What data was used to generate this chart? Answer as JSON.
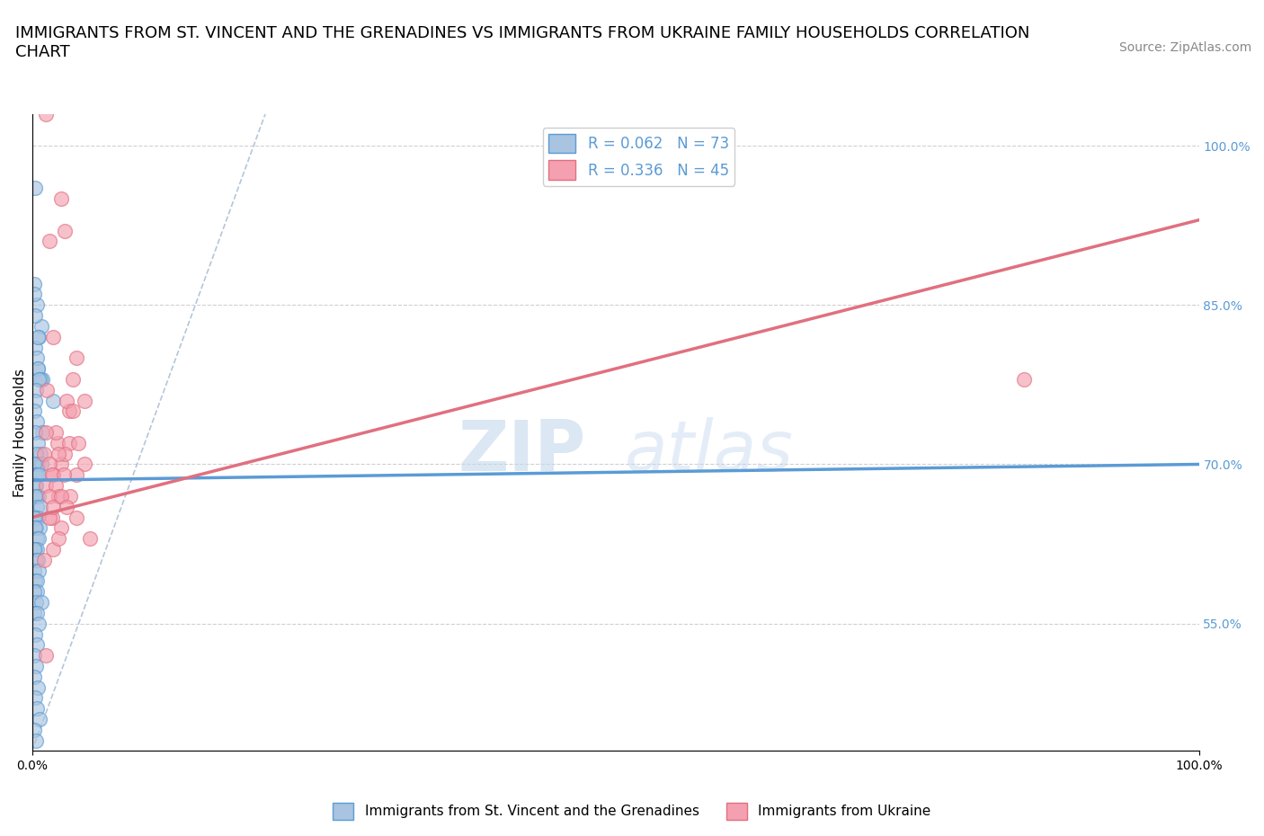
{
  "title": "IMMIGRANTS FROM ST. VINCENT AND THE GRENADINES VS IMMIGRANTS FROM UKRAINE FAMILY HOUSEHOLDS CORRELATION\nCHART",
  "source": "Source: ZipAtlas.com",
  "ylabel": "Family Households",
  "xlim": [
    0,
    100
  ],
  "ylim": [
    43,
    103
  ],
  "yticks": [
    55.0,
    70.0,
    85.0,
    100.0
  ],
  "xtick_labels": [
    "0.0%",
    "100.0%"
  ],
  "ytick_labels": [
    "55.0%",
    "70.0%",
    "85.0%",
    "100.0%"
  ],
  "legend_r1": "R = 0.062   N = 73",
  "legend_r2": "R = 0.336   N = 45",
  "color_blue": "#a8c4e0",
  "color_pink": "#f4a0b0",
  "color_blue_line": "#5b9bd5",
  "color_pink_line": "#e07080",
  "title_fontsize": 13,
  "axis_fontsize": 11,
  "tick_fontsize": 10,
  "source_fontsize": 10,
  "blue_line_x": [
    0,
    100
  ],
  "blue_line_y": [
    68.5,
    70.0
  ],
  "pink_line_x": [
    0,
    100
  ],
  "pink_line_y": [
    65.0,
    93.0
  ],
  "diag_line_x": [
    0,
    20
  ],
  "diag_line_y": [
    43,
    103
  ],
  "series1_x": [
    0.3,
    0.8,
    0.5,
    0.9,
    1.8,
    0.2,
    0.4,
    0.6,
    0.3,
    0.4,
    0.5,
    0.7,
    0.15,
    0.3,
    0.5,
    0.6,
    0.35,
    0.25,
    0.2,
    0.4,
    0.9,
    0.3,
    0.5,
    0.7,
    0.35,
    0.5,
    0.8,
    0.2,
    0.25,
    0.4,
    0.55,
    0.3,
    0.35,
    0.45,
    0.6,
    0.25,
    0.4,
    0.75,
    0.3,
    0.5,
    0.18,
    0.35,
    0.65,
    0.25,
    0.45,
    0.55,
    0.3,
    0.4,
    0.18,
    0.35,
    0.5,
    0.22,
    0.6,
    0.28,
    0.4,
    0.45,
    0.18,
    0.35,
    0.8,
    0.22,
    0.4,
    0.55,
    0.3,
    0.45,
    0.18,
    0.35,
    0.22,
    0.5,
    0.28,
    0.4,
    0.65,
    0.22,
    0.35
  ],
  "series1_y": [
    96,
    83,
    79,
    78,
    76,
    87,
    85,
    82,
    81,
    80,
    79,
    78,
    86,
    84,
    82,
    78,
    77,
    76,
    75,
    74,
    73,
    73,
    72,
    71,
    71,
    70,
    70,
    70,
    69,
    69,
    69,
    68,
    68,
    67,
    67,
    67,
    66,
    66,
    65,
    65,
    65,
    64,
    64,
    64,
    63,
    63,
    62,
    62,
    62,
    61,
    61,
    60,
    60,
    59,
    59,
    58,
    58,
    57,
    57,
    56,
    56,
    55,
    54,
    53,
    52,
    51,
    50,
    49,
    48,
    47,
    46,
    45,
    44
  ],
  "series2_x": [
    1.2,
    2.5,
    2.8,
    1.5,
    1.8,
    3.8,
    3.2,
    2.2,
    1.0,
    2.5,
    1.8,
    3.5,
    1.3,
    2.3,
    4.5,
    3.0,
    1.7,
    1.5,
    3.5,
    2.5,
    2.0,
    5.0,
    1.2,
    3.2,
    1.8,
    4.0,
    1.0,
    2.8,
    2.3,
    4.5,
    1.5,
    3.8,
    1.7,
    2.7,
    1.2,
    2.0,
    3.3,
    1.5,
    2.5,
    85.0,
    1.8,
    3.0,
    1.2,
    2.3,
    3.8
  ],
  "series2_y": [
    103,
    95,
    92,
    91,
    82,
    80,
    75,
    72,
    71,
    70,
    69,
    78,
    77,
    67,
    76,
    76,
    65,
    65,
    75,
    64,
    73,
    63,
    73,
    72,
    62,
    72,
    61,
    71,
    71,
    70,
    70,
    69,
    69,
    69,
    68,
    68,
    67,
    67,
    67,
    78,
    66,
    66,
    52,
    63,
    65
  ]
}
